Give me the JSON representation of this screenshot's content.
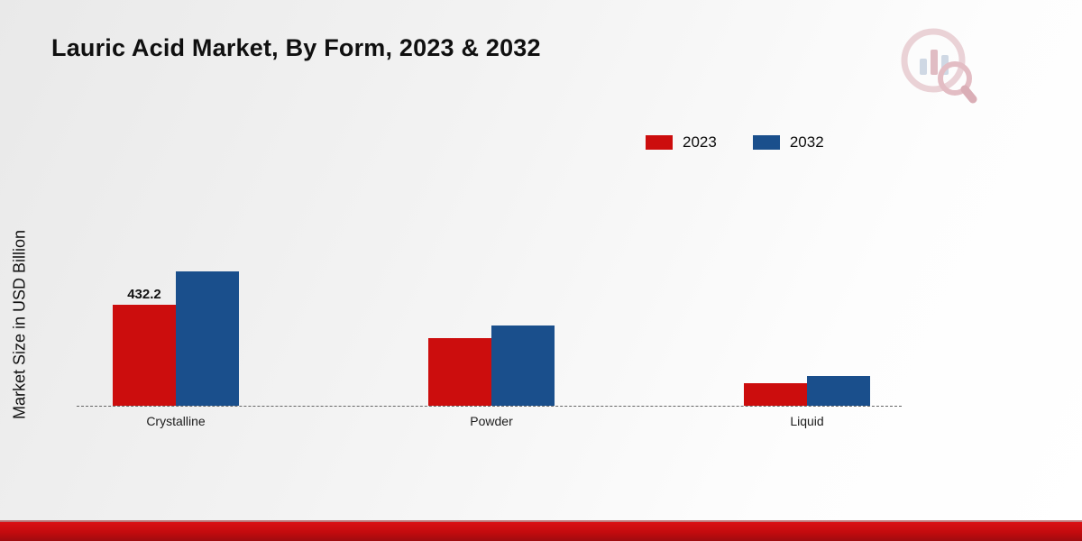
{
  "title": "Lauric Acid Market, By Form, 2023 & 2032",
  "ylabel": "Market Size in USD Billion",
  "legend": {
    "items": [
      {
        "label": "2023",
        "color": "#cc0d0d"
      },
      {
        "label": "2032",
        "color": "#1a4f8c"
      }
    ]
  },
  "chart_data": {
    "type": "bar",
    "title": "Lauric Acid Market, By Form, 2023 & 2032",
    "xlabel": "",
    "ylabel": "Market Size in USD Billion",
    "categories": [
      "Crystalline",
      "Powder",
      "Liquid"
    ],
    "series": [
      {
        "name": "2023",
        "color": "#cc0d0d",
        "values": [
          432.2,
          290,
          95
        ],
        "labels": [
          "432.2",
          "",
          ""
        ]
      },
      {
        "name": "2032",
        "color": "#1a4f8c",
        "values": [
          575,
          345,
          128
        ],
        "labels": [
          "",
          "",
          ""
        ]
      }
    ],
    "ylim": [
      0,
      600
    ],
    "grid": false,
    "baseline_style": "dashed",
    "legend_position": "top-right"
  },
  "branding": {
    "logo_icon": "bar-chart-magnifier-logo-icon"
  }
}
